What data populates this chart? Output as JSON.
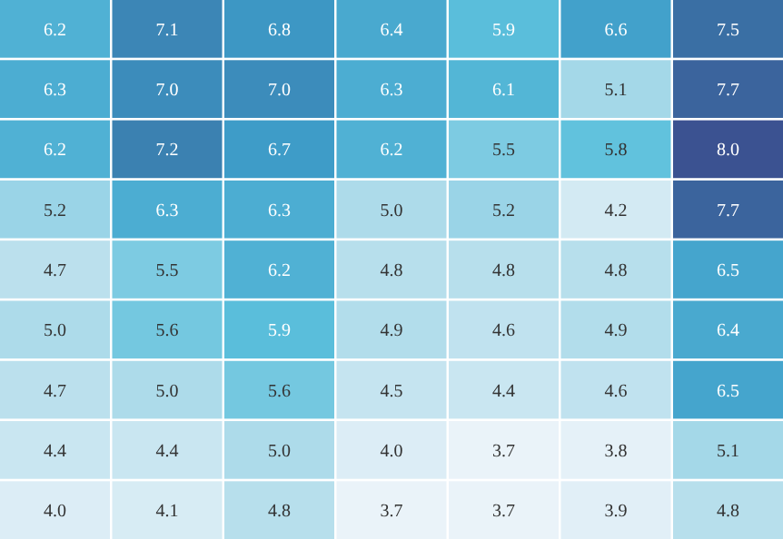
{
  "chart_data": {
    "type": "heatmap",
    "categories": [
      null,
      null,
      null,
      null,
      null,
      null,
      null
    ],
    "y_categories": [
      null,
      null,
      null,
      null,
      null,
      null,
      null,
      null,
      null
    ],
    "cells": [
      [
        6.2,
        7.1,
        6.8,
        6.4,
        5.9,
        6.6,
        7.5
      ],
      [
        6.3,
        7.0,
        7.0,
        6.3,
        6.1,
        5.1,
        7.7
      ],
      [
        6.2,
        7.2,
        6.7,
        6.2,
        5.5,
        5.8,
        8.0
      ],
      [
        5.2,
        6.3,
        6.3,
        5.0,
        5.2,
        4.2,
        7.7
      ],
      [
        4.7,
        5.5,
        6.2,
        4.8,
        4.8,
        4.8,
        6.5
      ],
      [
        5.0,
        5.6,
        5.9,
        4.9,
        4.6,
        4.9,
        6.4
      ],
      [
        4.7,
        5.0,
        5.6,
        4.5,
        4.4,
        4.6,
        6.5
      ],
      [
        4.4,
        4.4,
        5.0,
        4.0,
        3.7,
        3.8,
        5.1
      ],
      [
        4.0,
        4.1,
        4.8,
        3.7,
        3.7,
        3.9,
        4.8
      ]
    ],
    "cell_labels": [
      [
        "6.2",
        "7.1",
        "6.8",
        "6.4",
        "5.9",
        "6.6",
        "7.5"
      ],
      [
        "6.3",
        "7.0",
        "7.0",
        "6.3",
        "6.1",
        "5.1",
        "7.7"
      ],
      [
        "6.2",
        "7.2",
        "6.7",
        "6.2",
        "5.5",
        "5.8",
        "8.0"
      ],
      [
        "5.2",
        "6.3",
        "6.3",
        "5.0",
        "5.2",
        "4.2",
        "7.7"
      ],
      [
        "4.7",
        "5.5",
        "6.2",
        "4.8",
        "4.8",
        "4.8",
        "6.5"
      ],
      [
        "5.0",
        "5.6",
        "5.9",
        "4.9",
        "4.6",
        "4.9",
        "6.4"
      ],
      [
        "4.7",
        "5.0",
        "5.6",
        "4.5",
        "4.4",
        "4.6",
        "6.5"
      ],
      [
        "4.4",
        "4.4",
        "5.0",
        "4.0",
        "3.7",
        "3.8",
        "5.1"
      ],
      [
        "4.0",
        "4.1",
        "4.8",
        "3.7",
        "3.7",
        "3.9",
        "4.8"
      ]
    ]
  }
}
